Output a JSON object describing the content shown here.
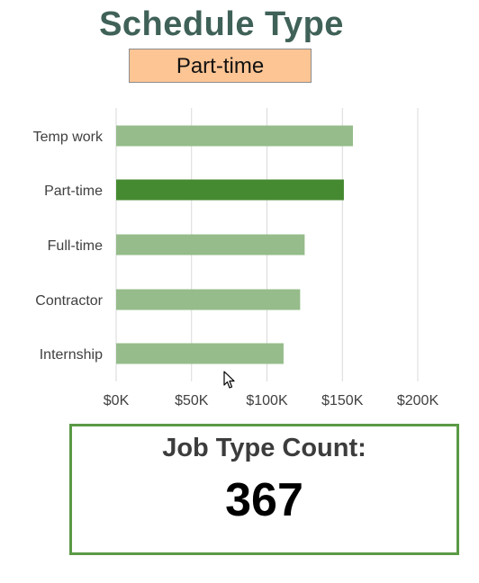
{
  "title": "Schedule Type",
  "selected_type": "Part-time",
  "chart_data": {
    "type": "bar",
    "orientation": "horizontal",
    "categories": [
      "Temp work",
      "Part-time",
      "Full-time",
      "Contractor",
      "Internship"
    ],
    "values": [
      157000,
      151000,
      125000,
      122000,
      111000
    ],
    "highlighted_category": "Part-time",
    "x_ticks": [
      0,
      50000,
      100000,
      150000,
      200000
    ],
    "x_tick_labels": [
      "$0K",
      "$50K",
      "$100K",
      "$150K",
      "$200K"
    ],
    "xlim": [
      0,
      200000
    ],
    "grid": "vertical",
    "colors": {
      "default_bar": "#95bc8a",
      "highlight_bar": "#458a30",
      "gridline": "#d9d9d9"
    }
  },
  "kpi": {
    "label": "Job Type Count:",
    "value": "367"
  }
}
